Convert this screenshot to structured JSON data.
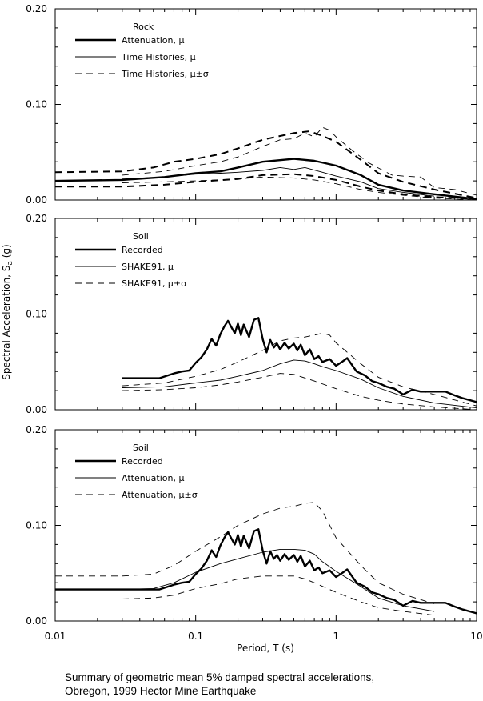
{
  "ylabel_main": "Spectral Acceleration, S",
  "ylabel_sub": "a",
  "ylabel_unit": " (g)",
  "xlabel": "Period, T (s)",
  "caption": {
    "line1": "Summary of geometric mean 5% damped spectral accelerations,",
    "line2": "Obregon, 1999 Hector Mine Earthquake"
  },
  "y_ticks": [
    "0.00",
    "0.10",
    "0.20"
  ],
  "x_ticks": [
    "0.01",
    "0.1",
    "1",
    "10"
  ],
  "chart_data": [
    {
      "type": "line",
      "title": "",
      "xscale": "log",
      "xlim": [
        0.01,
        10
      ],
      "ylim": [
        0,
        0.2
      ],
      "legend": {
        "title": "Rock",
        "placement": "top-left",
        "entries": [
          {
            "label": "Attenuation, μ",
            "style": "thick-solid"
          },
          {
            "label": "Time Histories, μ",
            "style": "thin-solid"
          },
          {
            "label": "Time Histories, μ±σ",
            "style": "dashed"
          }
        ]
      },
      "series": [
        {
          "name": "Attenuation, μ",
          "style": "thick-solid",
          "x": [
            0.01,
            0.03,
            0.06,
            0.1,
            0.15,
            0.2,
            0.3,
            0.5,
            0.7,
            1.0,
            1.5,
            2.0,
            3.0,
            5.0,
            10
          ],
          "y": [
            0.02,
            0.021,
            0.024,
            0.028,
            0.03,
            0.034,
            0.04,
            0.043,
            0.041,
            0.036,
            0.026,
            0.016,
            0.01,
            0.006,
            0.001
          ]
        },
        {
          "name": "Attenuation, μ+σ",
          "style": "thick-dashed",
          "x": [
            0.01,
            0.03,
            0.05,
            0.07,
            0.1,
            0.15,
            0.2,
            0.3,
            0.5,
            0.65,
            0.8,
            1.0,
            1.5,
            2.0,
            3.0,
            5.0,
            10
          ],
          "y": [
            0.029,
            0.03,
            0.034,
            0.04,
            0.043,
            0.048,
            0.054,
            0.063,
            0.07,
            0.072,
            0.067,
            0.061,
            0.042,
            0.028,
            0.019,
            0.011,
            0.002
          ]
        },
        {
          "name": "Attenuation, μ−σ",
          "style": "thick-dashed",
          "x": [
            0.01,
            0.03,
            0.06,
            0.1,
            0.2,
            0.3,
            0.5,
            0.7,
            1.0,
            1.5,
            2.0,
            3.0,
            5.0,
            10
          ],
          "y": [
            0.014,
            0.014,
            0.016,
            0.019,
            0.022,
            0.026,
            0.027,
            0.025,
            0.021,
            0.014,
            0.01,
            0.006,
            0.003,
            0.001
          ]
        },
        {
          "name": "Time Histories, μ",
          "style": "thin-solid",
          "x": [
            0.03,
            0.06,
            0.1,
            0.15,
            0.2,
            0.3,
            0.4,
            0.5,
            0.6,
            0.8,
            1.0,
            1.5,
            2.0,
            3.0,
            5.0
          ],
          "y": [
            0.022,
            0.024,
            0.027,
            0.028,
            0.029,
            0.031,
            0.034,
            0.032,
            0.034,
            0.029,
            0.025,
            0.019,
            0.012,
            0.008,
            0.004
          ]
        },
        {
          "name": "Time Histories, μ+σ",
          "style": "thin-dashed",
          "x": [
            0.03,
            0.06,
            0.1,
            0.15,
            0.2,
            0.3,
            0.4,
            0.5,
            0.6,
            0.7,
            0.8,
            0.9,
            1.0,
            1.3,
            1.7,
            2.5,
            3.0,
            4.0,
            5.0,
            7.0,
            10
          ],
          "y": [
            0.026,
            0.03,
            0.036,
            0.04,
            0.045,
            0.056,
            0.063,
            0.064,
            0.07,
            0.066,
            0.076,
            0.073,
            0.066,
            0.052,
            0.039,
            0.026,
            0.025,
            0.024,
            0.013,
            0.011,
            0.005
          ]
        },
        {
          "name": "Time Histories, μ−σ",
          "style": "thin-dashed",
          "x": [
            0.03,
            0.06,
            0.1,
            0.2,
            0.3,
            0.5,
            0.7,
            1.0,
            1.5,
            2.0,
            3.0,
            5.0,
            10
          ],
          "y": [
            0.018,
            0.019,
            0.02,
            0.022,
            0.024,
            0.023,
            0.021,
            0.017,
            0.011,
            0.008,
            0.005,
            0.002,
            0.0
          ]
        }
      ]
    },
    {
      "type": "line",
      "title": "",
      "xscale": "log",
      "xlim": [
        0.01,
        10
      ],
      "ylim": [
        0,
        0.2
      ],
      "legend": {
        "title": "Soil",
        "placement": "top-left",
        "entries": [
          {
            "label": "Recorded",
            "style": "thick-solid"
          },
          {
            "label": "SHAKE91, μ",
            "style": "thin-solid"
          },
          {
            "label": "SHAKE91, μ±σ",
            "style": "dashed"
          }
        ]
      },
      "series": [
        {
          "name": "Recorded",
          "style": "thick-solid",
          "x": [
            0.03,
            0.055,
            0.07,
            0.08,
            0.09,
            0.1,
            0.11,
            0.12,
            0.13,
            0.14,
            0.15,
            0.16,
            0.17,
            0.18,
            0.19,
            0.2,
            0.21,
            0.22,
            0.24,
            0.26,
            0.28,
            0.3,
            0.32,
            0.34,
            0.36,
            0.38,
            0.4,
            0.43,
            0.46,
            0.5,
            0.53,
            0.56,
            0.6,
            0.65,
            0.7,
            0.75,
            0.8,
            0.9,
            1.0,
            1.1,
            1.2,
            1.4,
            1.6,
            1.8,
            2.0,
            2.3,
            2.6,
            3.0,
            3.5,
            4.0,
            5.0,
            6.0,
            7.0,
            8.0,
            10
          ],
          "y": [
            0.033,
            0.033,
            0.038,
            0.04,
            0.041,
            0.049,
            0.055,
            0.063,
            0.074,
            0.067,
            0.079,
            0.087,
            0.093,
            0.086,
            0.08,
            0.09,
            0.078,
            0.089,
            0.076,
            0.094,
            0.096,
            0.074,
            0.06,
            0.073,
            0.065,
            0.069,
            0.063,
            0.07,
            0.064,
            0.069,
            0.062,
            0.068,
            0.057,
            0.063,
            0.053,
            0.056,
            0.05,
            0.053,
            0.046,
            0.05,
            0.054,
            0.04,
            0.036,
            0.03,
            0.028,
            0.024,
            0.022,
            0.016,
            0.021,
            0.019,
            0.019,
            0.019,
            0.015,
            0.012,
            0.008
          ]
        },
        {
          "name": "SHAKE91, μ",
          "style": "thin-solid",
          "x": [
            0.03,
            0.06,
            0.1,
            0.15,
            0.2,
            0.3,
            0.4,
            0.5,
            0.6,
            0.7,
            0.8,
            1.0,
            1.5,
            2.0,
            3.0,
            5.0,
            10
          ],
          "y": [
            0.023,
            0.024,
            0.028,
            0.031,
            0.035,
            0.041,
            0.048,
            0.052,
            0.051,
            0.048,
            0.045,
            0.041,
            0.032,
            0.023,
            0.014,
            0.007,
            0.002
          ]
        },
        {
          "name": "SHAKE91, μ+σ",
          "style": "thin-dashed",
          "x": [
            0.03,
            0.06,
            0.1,
            0.15,
            0.2,
            0.3,
            0.4,
            0.5,
            0.6,
            0.7,
            0.8,
            0.9,
            1.0,
            1.5,
            2.0,
            3.0,
            5.0,
            10
          ],
          "y": [
            0.025,
            0.028,
            0.035,
            0.042,
            0.05,
            0.062,
            0.072,
            0.075,
            0.076,
            0.078,
            0.08,
            0.078,
            0.07,
            0.048,
            0.034,
            0.024,
            0.016,
            0.004
          ]
        },
        {
          "name": "SHAKE91, μ−σ",
          "style": "thin-dashed",
          "x": [
            0.03,
            0.06,
            0.1,
            0.15,
            0.2,
            0.3,
            0.4,
            0.5,
            0.7,
            1.0,
            1.5,
            2.0,
            3.0,
            5.0,
            10
          ],
          "y": [
            0.02,
            0.021,
            0.023,
            0.026,
            0.029,
            0.034,
            0.038,
            0.037,
            0.03,
            0.022,
            0.014,
            0.01,
            0.006,
            0.003,
            0.0
          ]
        }
      ]
    },
    {
      "type": "line",
      "title": "",
      "xscale": "log",
      "xlim": [
        0.01,
        10
      ],
      "ylim": [
        0,
        0.2
      ],
      "legend": {
        "title": "Soil",
        "placement": "top-left",
        "entries": [
          {
            "label": "Recorded",
            "style": "thick-solid"
          },
          {
            "label": "Attenuation, μ",
            "style": "thin-solid"
          },
          {
            "label": "Attenuation, μ±σ",
            "style": "dashed"
          }
        ]
      },
      "series": [
        {
          "name": "Recorded",
          "style": "thick-solid",
          "x": [
            0.01,
            0.055,
            0.07,
            0.08,
            0.09,
            0.1,
            0.11,
            0.12,
            0.13,
            0.14,
            0.15,
            0.16,
            0.17,
            0.18,
            0.19,
            0.2,
            0.21,
            0.22,
            0.24,
            0.26,
            0.28,
            0.3,
            0.32,
            0.34,
            0.36,
            0.38,
            0.4,
            0.43,
            0.46,
            0.5,
            0.53,
            0.56,
            0.6,
            0.65,
            0.7,
            0.75,
            0.8,
            0.9,
            1.0,
            1.1,
            1.2,
            1.4,
            1.6,
            1.8,
            2.0,
            2.3,
            2.6,
            3.0,
            3.5,
            4.0,
            5.0,
            6.0,
            7.0,
            8.0,
            10
          ],
          "y": [
            0.033,
            0.033,
            0.038,
            0.04,
            0.041,
            0.049,
            0.055,
            0.063,
            0.074,
            0.067,
            0.079,
            0.087,
            0.093,
            0.086,
            0.08,
            0.09,
            0.078,
            0.089,
            0.076,
            0.094,
            0.096,
            0.074,
            0.06,
            0.073,
            0.065,
            0.069,
            0.063,
            0.07,
            0.064,
            0.069,
            0.062,
            0.068,
            0.057,
            0.063,
            0.053,
            0.056,
            0.05,
            0.053,
            0.046,
            0.05,
            0.054,
            0.04,
            0.036,
            0.03,
            0.028,
            0.024,
            0.022,
            0.016,
            0.021,
            0.019,
            0.019,
            0.019,
            0.015,
            0.012,
            0.008
          ]
        },
        {
          "name": "Attenuation, μ",
          "style": "thin-solid",
          "x": [
            0.01,
            0.03,
            0.05,
            0.07,
            0.1,
            0.15,
            0.2,
            0.3,
            0.4,
            0.5,
            0.6,
            0.7,
            0.8,
            1.0,
            1.5,
            2.0,
            3.0,
            5.0
          ],
          "y": [
            0.033,
            0.033,
            0.034,
            0.04,
            0.051,
            0.06,
            0.065,
            0.072,
            0.075,
            0.075,
            0.074,
            0.07,
            0.062,
            0.052,
            0.036,
            0.024,
            0.016,
            0.01
          ]
        },
        {
          "name": "Attenuation, μ+σ",
          "style": "thin-dashed",
          "x": [
            0.01,
            0.03,
            0.05,
            0.07,
            0.1,
            0.15,
            0.2,
            0.3,
            0.4,
            0.5,
            0.6,
            0.7,
            0.8,
            1.0,
            1.5,
            2.0,
            3.0,
            5.0
          ],
          "y": [
            0.047,
            0.047,
            0.049,
            0.058,
            0.073,
            0.088,
            0.1,
            0.112,
            0.118,
            0.12,
            0.123,
            0.124,
            0.115,
            0.087,
            0.058,
            0.04,
            0.028,
            0.018
          ]
        },
        {
          "name": "Attenuation, μ−σ",
          "style": "thin-dashed",
          "x": [
            0.01,
            0.03,
            0.05,
            0.07,
            0.1,
            0.15,
            0.2,
            0.3,
            0.5,
            0.6,
            0.7,
            1.0,
            1.5,
            2.0,
            3.0,
            5.0
          ],
          "y": [
            0.023,
            0.023,
            0.024,
            0.027,
            0.034,
            0.039,
            0.044,
            0.047,
            0.047,
            0.044,
            0.04,
            0.03,
            0.02,
            0.014,
            0.01,
            0.006
          ]
        }
      ]
    }
  ]
}
